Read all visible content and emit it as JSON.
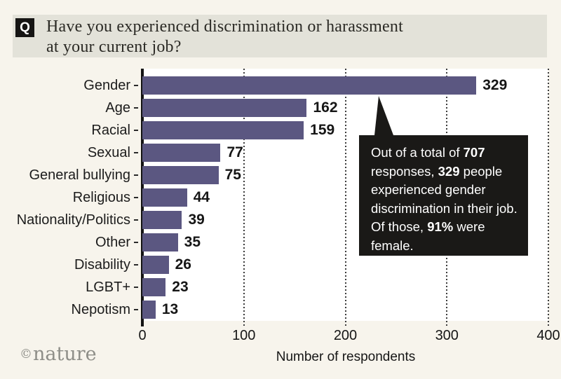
{
  "header": {
    "badge": "Q",
    "question_line1": "Have you experienced discrimination or harassment",
    "question_line2": "at your current job?"
  },
  "chart_data": {
    "type": "bar",
    "orientation": "horizontal",
    "title": "Have you experienced discrimination or harassment at your current job?",
    "categories": [
      "Gender",
      "Age",
      "Racial",
      "Sexual",
      "General bullying",
      "Religious",
      "Nationality/Politics",
      "Other",
      "Disability",
      "LGBT+",
      "Nepotism"
    ],
    "values": [
      329,
      162,
      159,
      77,
      75,
      44,
      39,
      35,
      26,
      23,
      13
    ],
    "xlabel": "Number of respondents",
    "ylabel": "",
    "xlim": [
      0,
      400
    ],
    "xticks": [
      0,
      100,
      200,
      300,
      400
    ],
    "grid": "vertical-dotted",
    "legend": "none",
    "value_labels": "end-of-bar"
  },
  "callout": {
    "segments": [
      {
        "text": "Out of a total of ",
        "bold": false
      },
      {
        "text": "707",
        "bold": true
      },
      {
        "text": " responses, ",
        "bold": false
      },
      {
        "text": "329",
        "bold": true
      },
      {
        "text": " people experienced gender discrimination in their job. Of those, ",
        "bold": false
      },
      {
        "text": "91%",
        "bold": true
      },
      {
        "text": " were female.",
        "bold": false
      }
    ]
  },
  "footer": {
    "copyright_symbol": "©",
    "logo_text": "nature"
  },
  "colors": {
    "page_bg": "#f7f4ec",
    "header_band": "#e3e2d9",
    "badge_bg": "#161514",
    "plot_bg": "#ffffff",
    "bar": "#5b5781",
    "axis": "#141414",
    "callout_bg": "#1a1917",
    "logo": "#8e8e88"
  }
}
